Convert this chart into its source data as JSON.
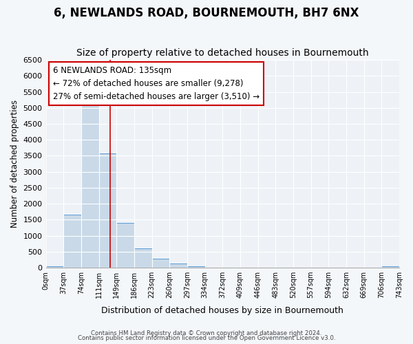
{
  "title": "6, NEWLANDS ROAD, BOURNEMOUTH, BH7 6NX",
  "subtitle": "Size of property relative to detached houses in Bournemouth",
  "xlabel": "Distribution of detached houses by size in Bournemouth",
  "ylabel": "Number of detached properties",
  "bin_edges": [
    0,
    37,
    74,
    111,
    148,
    185,
    222,
    259,
    296,
    333,
    370,
    407,
    444,
    481,
    518,
    555,
    592,
    629,
    666,
    703,
    740
  ],
  "bin_labels": [
    "0sqm",
    "37sqm",
    "74sqm",
    "111sqm",
    "149sqm",
    "186sqm",
    "223sqm",
    "260sqm",
    "297sqm",
    "334sqm",
    "372sqm",
    "409sqm",
    "446sqm",
    "483sqm",
    "520sqm",
    "557sqm",
    "594sqm",
    "632sqm",
    "669sqm",
    "706sqm",
    "743sqm"
  ],
  "bar_heights": [
    50,
    1650,
    5075,
    3580,
    1400,
    610,
    290,
    140,
    50,
    0,
    0,
    0,
    0,
    0,
    0,
    0,
    0,
    0,
    0,
    50,
    0
  ],
  "bar_color": "#c9d9e8",
  "bar_edge_color": "#5b9bd5",
  "ylim": [
    0,
    6500
  ],
  "yticks": [
    0,
    500,
    1000,
    1500,
    2000,
    2500,
    3000,
    3500,
    4000,
    4500,
    5000,
    5500,
    6000,
    6500
  ],
  "property_size": 135,
  "red_line_color": "#cc0000",
  "annotation_line1": "6 NEWLANDS ROAD: 135sqm",
  "annotation_line2": "← 72% of detached houses are smaller (9,278)",
  "annotation_line3": "27% of semi-detached houses are larger (3,510) →",
  "annotation_box_color": "#ffffff",
  "annotation_box_edge": "#cc0000",
  "footer1": "Contains HM Land Registry data © Crown copyright and database right 2024.",
  "footer2": "Contains public sector information licensed under the Open Government Licence v3.0.",
  "background_color": "#f4f7fa",
  "plot_background": "#eef2f7",
  "grid_color": "#ffffff",
  "title_fontsize": 12,
  "subtitle_fontsize": 10
}
